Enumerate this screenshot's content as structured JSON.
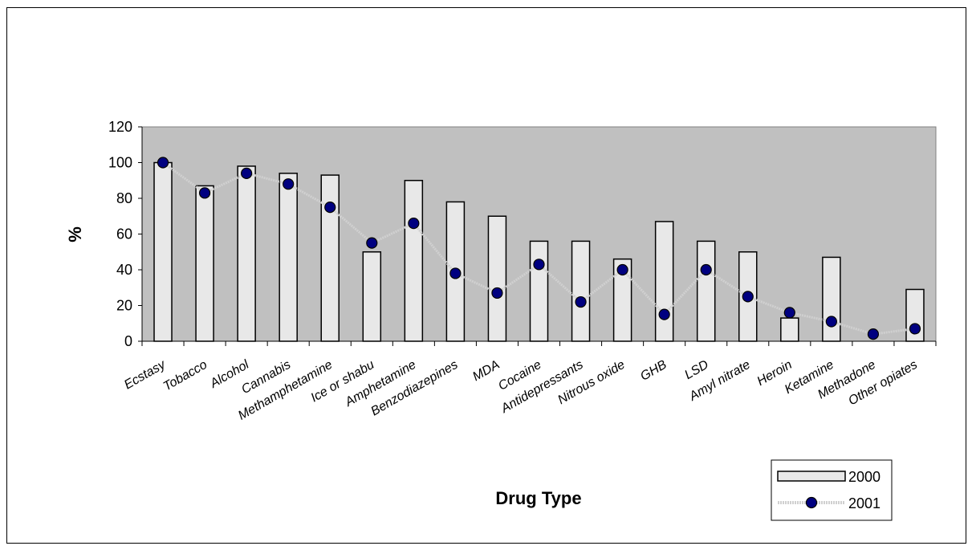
{
  "chart_data": {
    "type": "bar",
    "title": "",
    "xlabel": "Drug Type",
    "ylabel": "%",
    "ylim": [
      0,
      120
    ],
    "yticks": [
      0,
      20,
      40,
      60,
      80,
      100,
      120
    ],
    "grid": false,
    "legend_position": "bottom-right",
    "categories": [
      "Ecstasy",
      "Tobacco",
      "Alcohol",
      "Cannabis",
      "Methamphetamine",
      "Ice or shabu",
      "Amphetamine",
      "Benzodiazepines",
      "MDA",
      "Cocaine",
      "Antidepressants",
      "Nitrous oxide",
      "GHB",
      "LSD",
      "Amyl nitrate",
      "Heroin",
      "Ketamine",
      "Methadone",
      "Other opiates"
    ],
    "series": [
      {
        "name": "2000",
        "type": "bar",
        "values": [
          100,
          87,
          98,
          94,
          93,
          50,
          90,
          78,
          70,
          56,
          56,
          46,
          67,
          56,
          50,
          13,
          47,
          0,
          29
        ]
      },
      {
        "name": "2001",
        "type": "line",
        "values": [
          100,
          83,
          94,
          88,
          75,
          55,
          66,
          38,
          27,
          43,
          22,
          40,
          15,
          40,
          25,
          16,
          11,
          4,
          7
        ]
      }
    ],
    "colors": {
      "plot_background": "#c0c0c0",
      "bar_fill": "#e8e8e8",
      "line": "#d0d0d0",
      "marker": "#000080"
    }
  }
}
